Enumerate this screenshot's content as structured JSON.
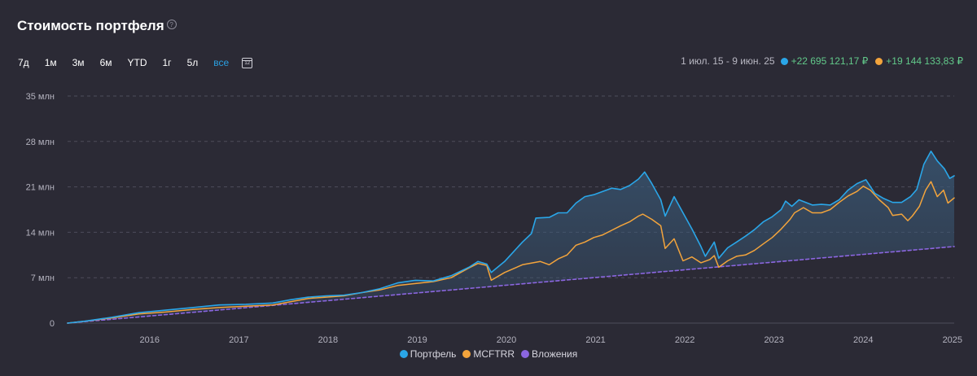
{
  "header": {
    "title": "Стоимость портфеля",
    "help_icon": "?",
    "ranges": [
      "7д",
      "1м",
      "3м",
      "6м",
      "YTD",
      "1г",
      "5л",
      "все"
    ],
    "active_range": "все",
    "calendar_icon_text": "12"
  },
  "summary": {
    "period": "1 июл. 15 - 9 июн. 25",
    "portfolio_gain": "+22 695 121,17 ₽",
    "index_gain": "+19 144 133,83 ₽"
  },
  "colors": {
    "portfolio": "#2aa6e8",
    "index": "#f3a43c",
    "investments": "#8b66e0",
    "gain": "#62c98a",
    "grid": "#4e4d5b",
    "area": "#3a5a78"
  },
  "chart_data": {
    "type": "line",
    "title": "Стоимость портфеля",
    "xlabel": "",
    "ylabel": "",
    "x_ticks": [
      "2016",
      "2017",
      "2018",
      "2019",
      "2020",
      "2021",
      "2022",
      "2023",
      "2024",
      "2025"
    ],
    "y_ticks": [
      "0",
      "7 млн",
      "14 млн",
      "21 млн",
      "28 млн",
      "35 млн"
    ],
    "ylim": [
      0,
      35
    ],
    "xlim": [
      2015.5,
      2025.44
    ],
    "y_unit": "млн ₽",
    "grid": true,
    "legend_position": "bottom",
    "series": [
      {
        "name": "Портфель",
        "points": [
          [
            2015.5,
            0
          ],
          [
            2015.7,
            0.3
          ],
          [
            2016.0,
            0.9
          ],
          [
            2016.3,
            1.6
          ],
          [
            2016.6,
            2.0
          ],
          [
            2016.9,
            2.4
          ],
          [
            2017.2,
            2.8
          ],
          [
            2017.5,
            2.9
          ],
          [
            2017.8,
            3.1
          ],
          [
            2018.0,
            3.6
          ],
          [
            2018.2,
            4.0
          ],
          [
            2018.4,
            4.2
          ],
          [
            2018.6,
            4.3
          ],
          [
            2018.8,
            4.7
          ],
          [
            2019.0,
            5.3
          ],
          [
            2019.2,
            6.2
          ],
          [
            2019.4,
            6.6
          ],
          [
            2019.6,
            6.5
          ],
          [
            2019.8,
            7.3
          ],
          [
            2020.0,
            8.6
          ],
          [
            2020.1,
            9.5
          ],
          [
            2020.2,
            9.1
          ],
          [
            2020.25,
            7.8
          ],
          [
            2020.4,
            9.5
          ],
          [
            2020.5,
            11.0
          ],
          [
            2020.6,
            12.5
          ],
          [
            2020.7,
            13.8
          ],
          [
            2020.75,
            16.2
          ],
          [
            2020.9,
            16.3
          ],
          [
            2021.0,
            17.0
          ],
          [
            2021.1,
            17.0
          ],
          [
            2021.2,
            18.5
          ],
          [
            2021.3,
            19.5
          ],
          [
            2021.4,
            19.8
          ],
          [
            2021.5,
            20.3
          ],
          [
            2021.6,
            20.8
          ],
          [
            2021.7,
            20.6
          ],
          [
            2021.8,
            21.2
          ],
          [
            2021.9,
            22.2
          ],
          [
            2021.97,
            23.3
          ],
          [
            2022.05,
            21.5
          ],
          [
            2022.15,
            19.0
          ],
          [
            2022.2,
            16.5
          ],
          [
            2022.3,
            19.5
          ],
          [
            2022.4,
            17.0
          ],
          [
            2022.5,
            14.5
          ],
          [
            2022.6,
            11.8
          ],
          [
            2022.65,
            10.3
          ],
          [
            2022.75,
            12.5
          ],
          [
            2022.8,
            10.0
          ],
          [
            2022.9,
            11.6
          ],
          [
            2023.0,
            12.5
          ],
          [
            2023.1,
            13.4
          ],
          [
            2023.2,
            14.4
          ],
          [
            2023.3,
            15.6
          ],
          [
            2023.4,
            16.4
          ],
          [
            2023.5,
            17.5
          ],
          [
            2023.55,
            18.8
          ],
          [
            2023.62,
            18.0
          ],
          [
            2023.7,
            19.0
          ],
          [
            2023.85,
            18.2
          ],
          [
            2023.95,
            18.3
          ],
          [
            2024.05,
            18.2
          ],
          [
            2024.15,
            19.0
          ],
          [
            2024.25,
            20.5
          ],
          [
            2024.35,
            21.5
          ],
          [
            2024.45,
            22.1
          ],
          [
            2024.55,
            20.0
          ],
          [
            2024.65,
            19.2
          ],
          [
            2024.75,
            18.6
          ],
          [
            2024.85,
            18.6
          ],
          [
            2024.95,
            19.5
          ],
          [
            2025.02,
            20.6
          ],
          [
            2025.1,
            24.5
          ],
          [
            2025.18,
            26.5
          ],
          [
            2025.25,
            25.0
          ],
          [
            2025.33,
            23.8
          ],
          [
            2025.39,
            22.3
          ],
          [
            2025.44,
            22.7
          ]
        ]
      },
      {
        "name": "MCFTRR",
        "points": [
          [
            2015.5,
            0
          ],
          [
            2015.7,
            0.3
          ],
          [
            2016.0,
            0.8
          ],
          [
            2016.3,
            1.4
          ],
          [
            2016.6,
            1.7
          ],
          [
            2016.9,
            2.1
          ],
          [
            2017.2,
            2.4
          ],
          [
            2017.5,
            2.6
          ],
          [
            2017.8,
            2.8
          ],
          [
            2018.0,
            3.3
          ],
          [
            2018.2,
            3.8
          ],
          [
            2018.4,
            4.0
          ],
          [
            2018.6,
            4.2
          ],
          [
            2018.8,
            4.7
          ],
          [
            2019.0,
            5.1
          ],
          [
            2019.2,
            5.8
          ],
          [
            2019.4,
            6.1
          ],
          [
            2019.6,
            6.4
          ],
          [
            2019.8,
            7.0
          ],
          [
            2020.0,
            8.5
          ],
          [
            2020.1,
            9.2
          ],
          [
            2020.2,
            8.9
          ],
          [
            2020.25,
            6.6
          ],
          [
            2020.4,
            7.8
          ],
          [
            2020.6,
            9.0
          ],
          [
            2020.8,
            9.5
          ],
          [
            2020.9,
            9.0
          ],
          [
            2021.0,
            9.9
          ],
          [
            2021.1,
            10.5
          ],
          [
            2021.2,
            12.0
          ],
          [
            2021.3,
            12.5
          ],
          [
            2021.4,
            13.2
          ],
          [
            2021.5,
            13.6
          ],
          [
            2021.6,
            14.3
          ],
          [
            2021.7,
            15.0
          ],
          [
            2021.8,
            15.6
          ],
          [
            2021.9,
            16.5
          ],
          [
            2021.95,
            16.8
          ],
          [
            2022.05,
            16.0
          ],
          [
            2022.15,
            15.0
          ],
          [
            2022.2,
            11.5
          ],
          [
            2022.3,
            13.0
          ],
          [
            2022.4,
            9.6
          ],
          [
            2022.5,
            10.2
          ],
          [
            2022.6,
            9.3
          ],
          [
            2022.7,
            9.8
          ],
          [
            2022.75,
            10.4
          ],
          [
            2022.8,
            8.6
          ],
          [
            2022.9,
            9.6
          ],
          [
            2023.0,
            10.3
          ],
          [
            2023.1,
            10.5
          ],
          [
            2023.2,
            11.2
          ],
          [
            2023.3,
            12.2
          ],
          [
            2023.4,
            13.2
          ],
          [
            2023.5,
            14.5
          ],
          [
            2023.6,
            16.0
          ],
          [
            2023.65,
            17.0
          ],
          [
            2023.75,
            17.8
          ],
          [
            2023.85,
            17.0
          ],
          [
            2023.95,
            17.0
          ],
          [
            2024.05,
            17.5
          ],
          [
            2024.15,
            18.6
          ],
          [
            2024.25,
            19.6
          ],
          [
            2024.35,
            20.3
          ],
          [
            2024.42,
            21.1
          ],
          [
            2024.5,
            20.5
          ],
          [
            2024.6,
            19.0
          ],
          [
            2024.7,
            17.8
          ],
          [
            2024.75,
            16.6
          ],
          [
            2024.85,
            16.8
          ],
          [
            2024.92,
            15.8
          ],
          [
            2024.97,
            16.5
          ],
          [
            2025.05,
            18.0
          ],
          [
            2025.12,
            20.5
          ],
          [
            2025.18,
            21.8
          ],
          [
            2025.25,
            19.5
          ],
          [
            2025.32,
            20.5
          ],
          [
            2025.37,
            18.5
          ],
          [
            2025.44,
            19.3
          ]
        ]
      },
      {
        "name": "Вложения",
        "points": [
          [
            2015.5,
            0
          ],
          [
            2025.44,
            11.8
          ]
        ]
      }
    ]
  },
  "legend": {
    "portfolio": "Портфель",
    "index": "MCFTRR",
    "investments": "Вложения"
  }
}
